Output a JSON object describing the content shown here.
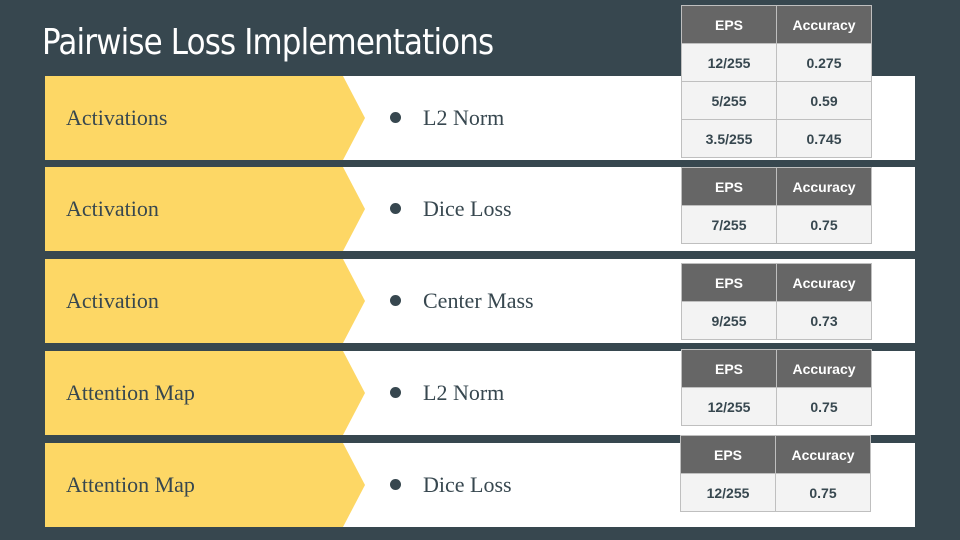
{
  "slide": {
    "title": "Pairwise Loss Implementations"
  },
  "rows": [
    {
      "label": "Activations",
      "bullet": "L2 Norm"
    },
    {
      "label": "Activation",
      "bullet": "Dice Loss"
    },
    {
      "label": "Activation",
      "bullet": "Center Mass"
    },
    {
      "label": "Attention Map",
      "bullet": "L2 Norm"
    },
    {
      "label": "Attention Map",
      "bullet": "Dice Loss"
    }
  ],
  "tables": [
    {
      "headers": [
        "EPS",
        "Accuracy"
      ],
      "rows": [
        [
          "12/255",
          "0.275"
        ],
        [
          "5/255",
          "0.59"
        ],
        [
          "3.5/255",
          "0.745"
        ]
      ]
    },
    {
      "headers": [
        "EPS",
        "Accuracy"
      ],
      "rows": [
        [
          "7/255",
          "0.75"
        ]
      ]
    },
    {
      "headers": [
        "EPS",
        "Accuracy"
      ],
      "rows": [
        [
          "9/255",
          "0.73"
        ]
      ]
    },
    {
      "headers": [
        "EPS",
        "Accuracy"
      ],
      "rows": [
        [
          "12/255",
          "0.75"
        ]
      ]
    },
    {
      "headers": [
        "EPS",
        "Accuracy"
      ],
      "rows": [
        [
          "12/255",
          "0.75"
        ]
      ]
    }
  ],
  "colors": {
    "background": "#37474f",
    "accent": "#fdd765",
    "table_header": "#666666",
    "table_cell": "#f3f3f3"
  }
}
